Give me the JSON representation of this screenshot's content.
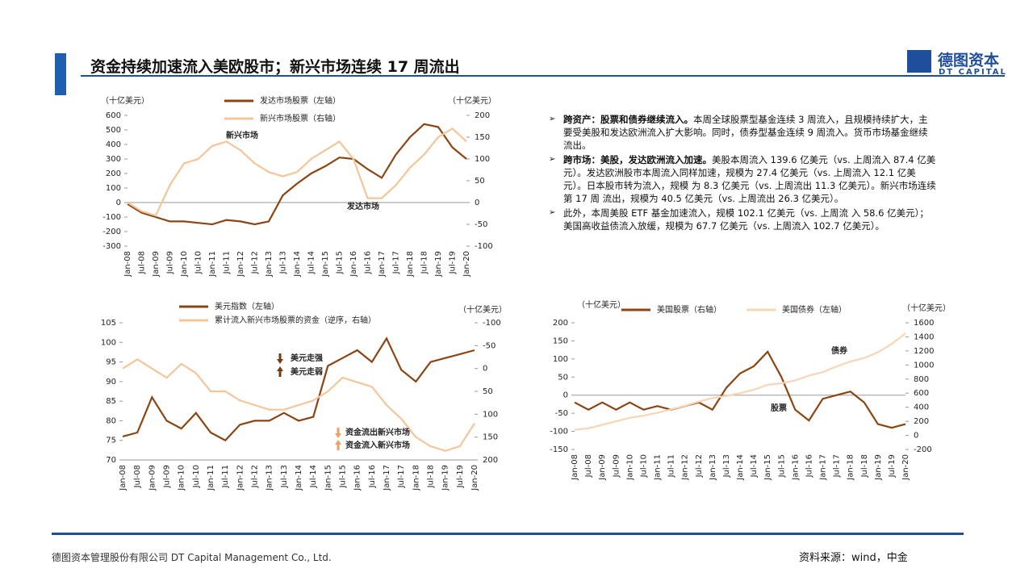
{
  "header": {
    "title": "资金持续加速流入美欧股市；新兴市场连续 17 周流出",
    "logo": "德图资本",
    "logo_en": "DT CAPITAL"
  },
  "bullets": [
    {
      "bold": "跨资产：股票和债券继续流入。",
      "text": "本周全球股票型基金连续 3 周流入，且规模持续扩大，主要受美股和发达欧洲流入扩大影响。同时，债券型基金连续 9 周流入。货币市场基金继续流出。"
    },
    {
      "bold": "跨市场：美股，发达欧洲流入加速。",
      "text": "美股本周流入 139.6 亿美元（vs. 上周流入 87.4 亿美元）。发达欧洲股市本周流入同样加速，规模为 27.4 亿美元（vs. 上周流入 12.1 亿美元）。日本股市转为流入，规模 为 8.3 亿美元（vs. 上周流出 11.3 亿美元）。新兴市场连续第 17 周 流出，规模为 40.5 亿美元（vs. 上周流出 26.3 亿美元）。"
    },
    {
      "bold": "",
      "text": "此外，本周美股 ETF 基金加速流入，规模 102.1 亿美元（vs. 上周流 入 58.6 亿美元）；美国高收益债流入放缓，规模为 67.7 亿美元（vs. 上周流入 102.7 亿美元）。"
    }
  ],
  "footer": {
    "company": "德图资本管理股份有限公司 DT Capital Management Co., Ltd.",
    "source": "资料来源：wind，中金"
  },
  "chart_data": [
    {
      "type": "line",
      "y_unit": "（十亿美元）",
      "y2_unit": "（十亿美元）",
      "categories": [
        "Jan-08",
        "Jul-08",
        "Jan-09",
        "Jul-09",
        "Jan-10",
        "Jul-10",
        "Jan-11",
        "Jul-11",
        "Jan-12",
        "Jul-12",
        "Jan-13",
        "Jul-13",
        "Jan-14",
        "Jul-14",
        "Jan-15",
        "Jul-15",
        "Jan-16",
        "Jul-16",
        "Jan-17",
        "Jul-17",
        "Jan-18",
        "Jul-18",
        "Jan-19",
        "Jul-19",
        "Jan-20"
      ],
      "ylim": [
        -300,
        600
      ],
      "yticks": [
        -300,
        -200,
        -100,
        0,
        100,
        200,
        300,
        400,
        500,
        600
      ],
      "y2lim": [
        -100,
        200
      ],
      "y2ticks": [
        -100,
        -50,
        0,
        50,
        100,
        150,
        200
      ],
      "series": [
        {
          "name": "发达市场股票（左轴）",
          "color": "#8b4513",
          "values": [
            -10,
            -70,
            -100,
            -130,
            -130,
            -140,
            -150,
            -120,
            -130,
            -150,
            -130,
            50,
            130,
            200,
            250,
            310,
            300,
            230,
            170,
            330,
            450,
            540,
            520,
            380,
            300
          ]
        },
        {
          "name": "新兴市场股票（右轴）",
          "color": "#f5c59a",
          "axis": "y2",
          "values": [
            0,
            -20,
            -30,
            40,
            90,
            100,
            130,
            140,
            120,
            90,
            70,
            60,
            70,
            100,
            120,
            140,
            100,
            10,
            10,
            40,
            80,
            110,
            150,
            170,
            140
          ]
        }
      ],
      "annotations": [
        "新兴市场",
        "发达市场"
      ]
    },
    {
      "type": "line",
      "y2_unit": "（十亿美元）",
      "categories": [
        "Jan-08",
        "Jul-08",
        "Jan-09",
        "Jul-09",
        "Jan-10",
        "Jul-10",
        "Jan-11",
        "Jul-11",
        "Jan-12",
        "Jul-12",
        "Jan-13",
        "Jul-13",
        "Jan-14",
        "Jul-14",
        "Jan-15",
        "Jul-15",
        "Jan-16",
        "Jul-16",
        "Jan-17",
        "Jul-17",
        "Jan-18",
        "Jul-18",
        "Jan-19",
        "Jul-19",
        "Jan-20"
      ],
      "ylim": [
        70,
        105
      ],
      "yticks": [
        70,
        75,
        80,
        85,
        90,
        95,
        100,
        105
      ],
      "y2lim": [
        200,
        -100
      ],
      "y2ticks": [
        -100,
        -50,
        0,
        50,
        100,
        150,
        200
      ],
      "series": [
        {
          "name": "美元指数（左轴）",
          "color": "#8b4513",
          "values": [
            76,
            77,
            86,
            80,
            78,
            82,
            77,
            75,
            79,
            80,
            80,
            82,
            80,
            81,
            94,
            96,
            98,
            95,
            101,
            93,
            90,
            95,
            96,
            97,
            98
          ]
        },
        {
          "name": "累计流入新兴市场股票的资金（逆序，右轴）",
          "color": "#f5c59a",
          "axis": "y2",
          "values": [
            0,
            -20,
            0,
            20,
            -10,
            10,
            50,
            50,
            70,
            80,
            90,
            90,
            80,
            70,
            50,
            20,
            30,
            40,
            80,
            110,
            150,
            170,
            180,
            170,
            120
          ]
        }
      ],
      "annotations": [
        "美元走强",
        "美元走弱",
        "资金流出新兴市场",
        "资金流入新兴市场"
      ]
    },
    {
      "type": "line",
      "y_unit": "（十亿美元）",
      "y2_unit": "（十亿美元）",
      "categories": [
        "Jan-08",
        "Jul-08",
        "Jan-09",
        "Jul-09",
        "Jan-10",
        "Jul-10",
        "Jan-11",
        "Jul-11",
        "Jan-12",
        "Jul-12",
        "Jan-13",
        "Jul-13",
        "Jan-14",
        "Jul-14",
        "Jan-15",
        "Jul-15",
        "Jan-16",
        "Jul-16",
        "Jan-17",
        "Jul-17",
        "Jan-18",
        "Jul-18",
        "Jan-19",
        "Jul-19",
        "Jan-20"
      ],
      "ylim": [
        -150,
        200
      ],
      "yticks": [
        -150,
        -100,
        -50,
        0,
        50,
        100,
        150,
        200
      ],
      "y2lim": [
        -200,
        1600
      ],
      "y2ticks": [
        -200,
        0,
        200,
        400,
        600,
        800,
        1000,
        1200,
        1400,
        1600
      ],
      "series": [
        {
          "name": "美国股票（右轴）",
          "color": "#8b4513",
          "values": [
            -20,
            -40,
            -20,
            -40,
            -20,
            -40,
            -30,
            -40,
            -30,
            -20,
            -40,
            20,
            60,
            80,
            120,
            50,
            -40,
            -70,
            -10,
            0,
            10,
            -20,
            -80,
            -90,
            -80
          ]
        },
        {
          "name": "美国债券（左轴）",
          "color": "#f8d5b5",
          "axis": "y2",
          "values": [
            80,
            100,
            150,
            200,
            250,
            280,
            320,
            370,
            420,
            480,
            530,
            560,
            600,
            650,
            720,
            740,
            780,
            850,
            900,
            980,
            1050,
            1100,
            1180,
            1300,
            1450
          ]
        }
      ],
      "annotations": [
        "债券",
        "股票"
      ]
    }
  ]
}
